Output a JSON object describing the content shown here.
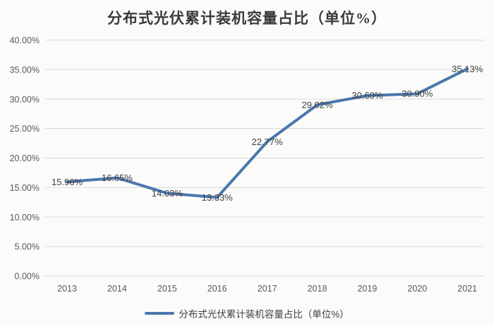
{
  "chart_data": {
    "type": "line",
    "title": "分布式光伏累计装机容量占比（单位%）",
    "xlabel": "",
    "ylabel": "",
    "categories": [
      "2013",
      "2014",
      "2015",
      "2016",
      "2017",
      "2018",
      "2019",
      "2020",
      "2021"
    ],
    "series": [
      {
        "name": "分布式光伏累计装机容量占比（单位%）",
        "values": [
          15.96,
          16.65,
          14.03,
          13.33,
          22.77,
          29.02,
          30.6,
          30.9,
          35.13
        ],
        "labels": [
          "15.96%",
          "16.65%",
          "14.03%",
          "13.33%",
          "22.77%",
          "29.02%",
          "30.60%",
          "30.90%",
          "35.13%"
        ],
        "color": "#4a77ad"
      }
    ],
    "ylim": [
      0,
      40
    ],
    "ytick_step": 5,
    "ytick_labels": [
      "0.00%",
      "5.00%",
      "10.00%",
      "15.00%",
      "20.00%",
      "25.00%",
      "30.00%",
      "35.00%",
      "40.00%"
    ],
    "grid": "horizontal",
    "legend_position": "bottom",
    "legend_label": "分布式光伏累计装机容量占比（单位%）",
    "colors": {
      "line": "#4a77ad",
      "gridline": "#d9d9d9",
      "axis_text": "#595959",
      "label_text": "#404040",
      "title_text": "#3a3a3a",
      "background": "#fbfbfa"
    }
  }
}
